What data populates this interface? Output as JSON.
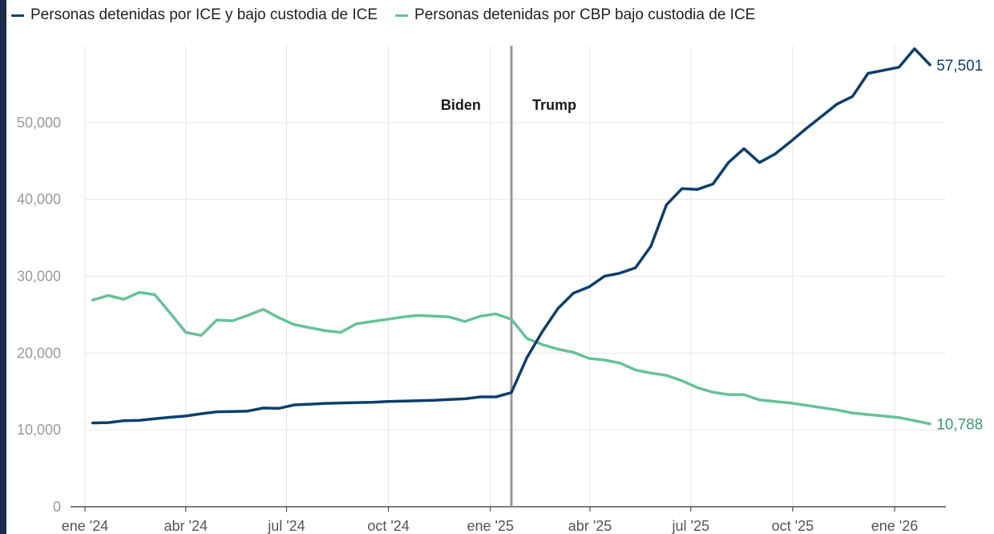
{
  "legend": [
    {
      "label": "Personas detenidas por ICE y bajo custodia de ICE",
      "color": "#0d3f6e"
    },
    {
      "label": "Personas detenidas por CBP bajo custodia de ICE",
      "color": "#66c299"
    }
  ],
  "annotations": {
    "left": "Biden",
    "right": "Trump"
  },
  "colors": {
    "ice": "#0d3f6e",
    "cbp": "#66c299",
    "cbp_label": "#3a9a6e",
    "divider": "#999999",
    "grid": "#e6e6e6",
    "axis": "#333333"
  },
  "chart_data": {
    "type": "line",
    "title": "",
    "xlabel": "",
    "ylabel": "",
    "ylim": [
      0,
      60000
    ],
    "y_ticks": [
      0,
      10000,
      20000,
      30000,
      40000,
      50000
    ],
    "y_tick_labels": [
      "0",
      "10,000",
      "20,000",
      "30,000",
      "40,000",
      "50,000"
    ],
    "x_ticks": [
      "2024-01-01",
      "2024-04-01",
      "2024-07-01",
      "2024-10-01",
      "2025-01-01",
      "2025-04-01",
      "2025-07-01",
      "2025-10-01",
      "2026-01-01"
    ],
    "x_tick_labels": [
      "ene '24",
      "abr '24",
      "jul '24",
      "oct '24",
      "ene '25",
      "abr '25",
      "jul '25",
      "oct '25",
      "ene '26"
    ],
    "divider_date": "2025-01-20",
    "grid": true,
    "legend_position": "top-left",
    "series": [
      {
        "name": "Personas detenidas por ICE y bajo custodia de ICE",
        "end_label": "57,501",
        "points": [
          [
            "2024-01-08",
            10900
          ],
          [
            "2024-01-22",
            10950
          ],
          [
            "2024-02-05",
            11200
          ],
          [
            "2024-02-19",
            11250
          ],
          [
            "2024-03-04",
            11450
          ],
          [
            "2024-03-18",
            11650
          ],
          [
            "2024-04-01",
            11800
          ],
          [
            "2024-04-15",
            12100
          ],
          [
            "2024-04-29",
            12350
          ],
          [
            "2024-05-13",
            12400
          ],
          [
            "2024-05-27",
            12450
          ],
          [
            "2024-06-10",
            12850
          ],
          [
            "2024-06-24",
            12800
          ],
          [
            "2024-07-08",
            13250
          ],
          [
            "2024-07-22",
            13350
          ],
          [
            "2024-08-05",
            13450
          ],
          [
            "2024-08-19",
            13500
          ],
          [
            "2024-09-02",
            13550
          ],
          [
            "2024-09-16",
            13600
          ],
          [
            "2024-09-30",
            13700
          ],
          [
            "2024-10-14",
            13750
          ],
          [
            "2024-10-28",
            13800
          ],
          [
            "2024-11-11",
            13850
          ],
          [
            "2024-11-25",
            13950
          ],
          [
            "2024-12-09",
            14050
          ],
          [
            "2024-12-23",
            14300
          ],
          [
            "2025-01-06",
            14300
          ],
          [
            "2025-01-20",
            14850
          ],
          [
            "2025-02-03",
            19400
          ],
          [
            "2025-02-17",
            22800
          ],
          [
            "2025-03-03",
            25800
          ],
          [
            "2025-03-17",
            27800
          ],
          [
            "2025-03-31",
            28600
          ],
          [
            "2025-04-14",
            30000
          ],
          [
            "2025-04-28",
            30400
          ],
          [
            "2025-05-12",
            31100
          ],
          [
            "2025-05-26",
            33900
          ],
          [
            "2025-06-09",
            39300
          ],
          [
            "2025-06-23",
            41400
          ],
          [
            "2025-07-07",
            41300
          ],
          [
            "2025-07-21",
            42000
          ],
          [
            "2025-08-04",
            44800
          ],
          [
            "2025-08-18",
            46600
          ],
          [
            "2025-09-01",
            44800
          ],
          [
            "2025-09-15",
            45900
          ],
          [
            "2025-09-29",
            47500
          ],
          [
            "2025-10-13",
            49200
          ],
          [
            "2025-10-27",
            50800
          ],
          [
            "2025-11-10",
            52400
          ],
          [
            "2025-11-24",
            53400
          ],
          [
            "2025-12-08",
            56400
          ],
          [
            "2025-12-22",
            56800
          ],
          [
            "2026-01-05",
            57200
          ],
          [
            "2026-01-19",
            59600
          ],
          [
            "2026-02-02",
            57501
          ]
        ]
      },
      {
        "name": "Personas detenidas por CBP bajo custodia de ICE",
        "end_label": "10,788",
        "points": [
          [
            "2024-01-08",
            26900
          ],
          [
            "2024-01-22",
            27500
          ],
          [
            "2024-02-05",
            27000
          ],
          [
            "2024-02-19",
            27900
          ],
          [
            "2024-03-04",
            27600
          ],
          [
            "2024-03-18",
            25200
          ],
          [
            "2024-04-01",
            22700
          ],
          [
            "2024-04-15",
            22300
          ],
          [
            "2024-04-29",
            24300
          ],
          [
            "2024-05-13",
            24200
          ],
          [
            "2024-05-27",
            24900
          ],
          [
            "2024-06-10",
            25700
          ],
          [
            "2024-06-24",
            24600
          ],
          [
            "2024-07-08",
            23700
          ],
          [
            "2024-07-22",
            23300
          ],
          [
            "2024-08-05",
            22900
          ],
          [
            "2024-08-19",
            22700
          ],
          [
            "2024-09-02",
            23800
          ],
          [
            "2024-09-16",
            24100
          ],
          [
            "2024-09-30",
            24400
          ],
          [
            "2024-10-14",
            24700
          ],
          [
            "2024-10-28",
            24900
          ],
          [
            "2024-11-11",
            24800
          ],
          [
            "2024-11-25",
            24700
          ],
          [
            "2024-12-09",
            24100
          ],
          [
            "2024-12-23",
            24800
          ],
          [
            "2025-01-06",
            25100
          ],
          [
            "2025-01-20",
            24400
          ],
          [
            "2025-02-03",
            21900
          ],
          [
            "2025-02-17",
            21100
          ],
          [
            "2025-03-03",
            20500
          ],
          [
            "2025-03-17",
            20100
          ],
          [
            "2025-03-31",
            19300
          ],
          [
            "2025-04-14",
            19100
          ],
          [
            "2025-04-28",
            18700
          ],
          [
            "2025-05-12",
            17800
          ],
          [
            "2025-05-26",
            17400
          ],
          [
            "2025-06-09",
            17100
          ],
          [
            "2025-06-23",
            16400
          ],
          [
            "2025-07-07",
            15500
          ],
          [
            "2025-07-21",
            14900
          ],
          [
            "2025-08-04",
            14600
          ],
          [
            "2025-08-18",
            14600
          ],
          [
            "2025-09-01",
            13900
          ],
          [
            "2025-09-15",
            13700
          ],
          [
            "2025-09-29",
            13500
          ],
          [
            "2025-10-13",
            13200
          ],
          [
            "2025-10-27",
            12900
          ],
          [
            "2025-11-10",
            12600
          ],
          [
            "2025-11-24",
            12200
          ],
          [
            "2025-12-08",
            12000
          ],
          [
            "2025-12-22",
            11800
          ],
          [
            "2026-01-05",
            11600
          ],
          [
            "2026-01-19",
            11200
          ],
          [
            "2026-02-02",
            10788
          ]
        ]
      }
    ]
  }
}
